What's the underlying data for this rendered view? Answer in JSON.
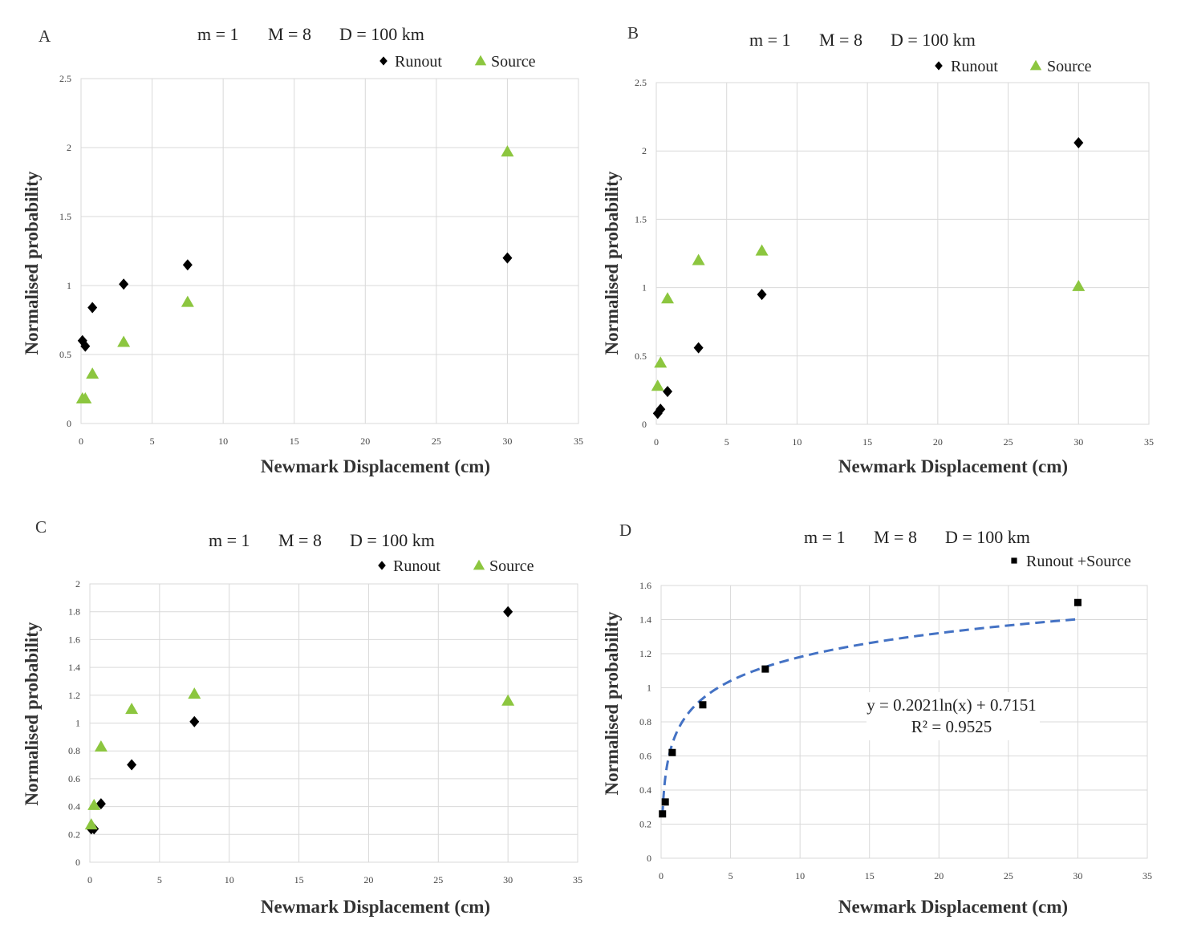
{
  "colors": {
    "runout": "#000000",
    "source": "#8cc63f",
    "trendline": "#4472c4",
    "grid": "#d9d9d9"
  },
  "icons": {
    "runout": "black-diamond-marker",
    "source": "green-triangle-marker",
    "combined": "black-square-marker"
  },
  "chart_data": [
    {
      "panel": "A",
      "type": "scatter",
      "title": "",
      "params": {
        "m": "m = 1",
        "M": "M = 8",
        "D": "D = 100 km"
      },
      "xlabel": "Newmark Displacement (cm)",
      "ylabel": "Normalised probability",
      "xlim": [
        0,
        35
      ],
      "ylim": [
        0,
        2.5
      ],
      "xticks": [
        0,
        5,
        10,
        15,
        20,
        25,
        30,
        35
      ],
      "xtick_labels": [
        "0",
        "5",
        "10",
        "15",
        "20",
        "25",
        "30",
        "35"
      ],
      "yticks": [
        0,
        0.5,
        1,
        1.5,
        2,
        2.5
      ],
      "ytick_labels": [
        "0",
        "0.5",
        "1",
        "1.5",
        "2",
        "2.5"
      ],
      "legend_position": "top-right",
      "series": [
        {
          "name": "Runout",
          "marker": "diamond",
          "x": [
            0.1,
            0.3,
            0.8,
            3,
            7.5,
            30
          ],
          "y": [
            0.6,
            0.56,
            0.84,
            1.01,
            1.15,
            1.2
          ]
        },
        {
          "name": "Source",
          "marker": "triangle",
          "x": [
            0.1,
            0.3,
            0.8,
            3,
            7.5,
            30
          ],
          "y": [
            0.18,
            0.18,
            0.36,
            0.59,
            0.88,
            1.97
          ]
        }
      ]
    },
    {
      "panel": "B",
      "type": "scatter",
      "title": "",
      "params": {
        "m": "m = 1",
        "M": "M = 8",
        "D": "D = 100 km"
      },
      "xlabel": "Newmark Displacement (cm)",
      "ylabel": "Normalised probability",
      "xlim": [
        0,
        35
      ],
      "ylim": [
        0,
        2.5
      ],
      "xticks": [
        0,
        5,
        10,
        15,
        20,
        25,
        30,
        35
      ],
      "xtick_labels": [
        "0",
        "5",
        "10",
        "15",
        "20",
        "25",
        "30",
        "35"
      ],
      "yticks": [
        0,
        0.5,
        1,
        1.5,
        2,
        2.5
      ],
      "ytick_labels": [
        "0",
        "0.5",
        "1",
        "1.5",
        "2",
        "2.5"
      ],
      "legend_position": "top-right",
      "series": [
        {
          "name": "Runout",
          "marker": "diamond",
          "x": [
            0.1,
            0.3,
            0.8,
            3,
            7.5,
            30
          ],
          "y": [
            0.08,
            0.11,
            0.24,
            0.56,
            0.95,
            2.06
          ]
        },
        {
          "name": "Source",
          "marker": "triangle",
          "x": [
            0.1,
            0.3,
            0.8,
            3,
            7.5,
            30
          ],
          "y": [
            0.28,
            0.45,
            0.92,
            1.2,
            1.27,
            1.01
          ]
        }
      ]
    },
    {
      "panel": "C",
      "type": "scatter",
      "title": "",
      "params": {
        "m": "m = 1",
        "M": "M = 8",
        "D": "D = 100 km"
      },
      "xlabel": "Newmark Displacement (cm)",
      "ylabel": "Normalised probability",
      "xlim": [
        0,
        35
      ],
      "ylim": [
        0,
        2
      ],
      "xticks": [
        0,
        5,
        10,
        15,
        20,
        25,
        30,
        35
      ],
      "xtick_labels": [
        "0",
        "5",
        "10",
        "15",
        "20",
        "25",
        "30",
        "35"
      ],
      "yticks": [
        0,
        0.2,
        0.4,
        0.6,
        0.8,
        1,
        1.2,
        1.4,
        1.6,
        1.8,
        2
      ],
      "ytick_labels": [
        "0",
        "0.2",
        "0.4",
        "0.6",
        "0.8",
        "1",
        "1.2",
        "1.4",
        "1.6",
        "1.8",
        "2"
      ],
      "legend_position": "top-right",
      "series": [
        {
          "name": "Runout",
          "marker": "diamond",
          "x": [
            0.1,
            0.3,
            0.8,
            3,
            7.5,
            30
          ],
          "y": [
            0.24,
            0.24,
            0.42,
            0.7,
            1.01,
            1.8
          ]
        },
        {
          "name": "Source",
          "marker": "triangle",
          "x": [
            0.1,
            0.3,
            0.8,
            3,
            7.5,
            30
          ],
          "y": [
            0.27,
            0.41,
            0.83,
            1.1,
            1.21,
            1.16
          ]
        }
      ]
    },
    {
      "panel": "D",
      "type": "scatter",
      "title": "",
      "params": {
        "m": "m = 1",
        "M": "M = 8",
        "D": "D = 100 km"
      },
      "xlabel": "Newmark Displacement (cm)",
      "ylabel": "Normalised probability",
      "xlim": [
        0,
        35
      ],
      "ylim": [
        0,
        1.6
      ],
      "xticks": [
        0,
        5,
        10,
        15,
        20,
        25,
        30,
        35
      ],
      "xtick_labels": [
        "0",
        "5",
        "10",
        "15",
        "20",
        "25",
        "30",
        "35"
      ],
      "yticks": [
        0,
        0.2,
        0.4,
        0.6,
        0.8,
        1,
        1.2,
        1.4,
        1.6
      ],
      "ytick_labels": [
        "0",
        "0.2",
        "0.4",
        "0.6",
        "0.8",
        "1",
        "1.2",
        "1.4",
        "1.6"
      ],
      "legend_position": "top-right",
      "series": [
        {
          "name": "Runout +Source",
          "marker": "square",
          "x": [
            0.1,
            0.3,
            0.8,
            3,
            7.5,
            30
          ],
          "y": [
            0.26,
            0.33,
            0.62,
            0.9,
            1.11,
            1.5
          ]
        }
      ],
      "trendline": {
        "type": "logarithmic",
        "a": 0.2021,
        "b": 0.7151,
        "x_range": [
          0.1,
          30
        ],
        "equation": "y = 0.2021ln(x) + 0.7151",
        "r_squared": "R² = 0.9525"
      }
    }
  ]
}
